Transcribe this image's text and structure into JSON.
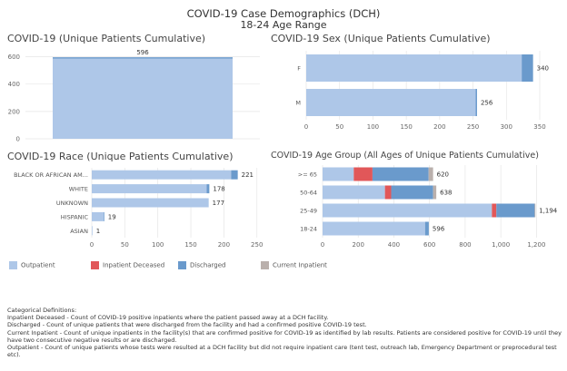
{
  "header": {
    "title": "COVID-19 Case Demographics (DCH)",
    "subtitle": "18-24 Age Range"
  },
  "colors": {
    "outpatient": "#aec7e8",
    "inpatient_deceased": "#e15759",
    "discharged": "#6a9acc",
    "current_inpatient": "#bab0ac",
    "grid": "#e6e6e6"
  },
  "legend": [
    {
      "label": "Outpatient",
      "color": "#aec7e8"
    },
    {
      "label": "Inpatient Deceased",
      "color": "#e15759"
    },
    {
      "label": "Discharged",
      "color": "#6a9acc"
    },
    {
      "label": "Current Inpatient",
      "color": "#bab0ac"
    }
  ],
  "chart_data": [
    {
      "id": "cumulative",
      "type": "bar",
      "title": "COVID-19 (Unique Patients Cumulative)",
      "orientation": "vertical",
      "categories": [
        ""
      ],
      "series": [
        {
          "key": "outpatient",
          "values": [
            586
          ]
        },
        {
          "key": "discharged",
          "values": [
            10
          ]
        }
      ],
      "labels": [
        "596"
      ],
      "ylim": [
        0,
        630
      ],
      "yticks": [
        0,
        200,
        400,
        600
      ],
      "grid": true
    },
    {
      "id": "sex",
      "type": "bar",
      "title": "COVID-19 Sex (Unique Patients Cumulative)",
      "orientation": "horizontal",
      "categories": [
        "F",
        "M"
      ],
      "series": [
        {
          "key": "outpatient",
          "values": [
            323,
            254
          ]
        },
        {
          "key": "discharged",
          "values": [
            17,
            2
          ]
        }
      ],
      "labels": [
        "340",
        "256"
      ],
      "xlim": [
        0,
        365
      ],
      "xticks": [
        0,
        50,
        100,
        150,
        200,
        250,
        300,
        350
      ],
      "grid": true
    },
    {
      "id": "race",
      "type": "bar",
      "title": "COVID-19 Race (Unique Patients Cumulative)",
      "orientation": "horizontal",
      "categories": [
        "BLACK OR AFRICAN AM...",
        "WHITE",
        "UNKNOWN",
        "HISPANIC",
        "ASIAN"
      ],
      "series": [
        {
          "key": "outpatient",
          "values": [
            211,
            174,
            177,
            18,
            1
          ]
        },
        {
          "key": "discharged",
          "values": [
            10,
            4,
            0,
            1,
            0
          ]
        }
      ],
      "labels": [
        "221",
        "178",
        "177",
        "19",
        "1"
      ],
      "xlim": [
        0,
        260
      ],
      "xticks": [
        0,
        50,
        100,
        150,
        200,
        250
      ],
      "grid": true
    },
    {
      "id": "age",
      "type": "bar",
      "title": "COVID-19 Age Group (All Ages of Unique Patients Cumulative)",
      "orientation": "horizontal",
      "categories": [
        ">= 65",
        "50-64",
        "25-49",
        "18-24"
      ],
      "series": [
        {
          "key": "outpatient",
          "values": [
            175,
            350,
            950,
            575
          ]
        },
        {
          "key": "inpatient_deceased",
          "values": [
            105,
            35,
            25,
            0
          ]
        },
        {
          "key": "discharged",
          "values": [
            315,
            235,
            215,
            21
          ]
        },
        {
          "key": "current_inpatient",
          "values": [
            25,
            18,
            4,
            0
          ]
        }
      ],
      "labels": [
        "620",
        "638",
        "1,194",
        "596"
      ],
      "xlim": [
        0,
        1300
      ],
      "xticks": [
        0,
        200,
        400,
        600,
        800,
        1000,
        1200
      ],
      "grid": true
    }
  ],
  "definitions": {
    "heading": "Categorical Definitions:",
    "items": [
      "Inpatient Deceased - Count of COVID-19 positive inpatients where the patient passed away at a DCH facility.",
      "Discharged - Count of unique patients that were discharged from the facility and had a confirmed positive COVID-19 test.",
      "Current Inpatient - Count of unique inpatients in the facility(s) that are confirmed positive for COVID-19 as identified by lab results. Patients are considered positive for COVID-19 until they have two consecutive negative results or are discharged.",
      "Outpatient - Count of unique patients whose tests were resulted at a DCH facility but did not require inpatient care (tent test, outreach lab, Emergency Department or preprocedural test etc)."
    ]
  }
}
